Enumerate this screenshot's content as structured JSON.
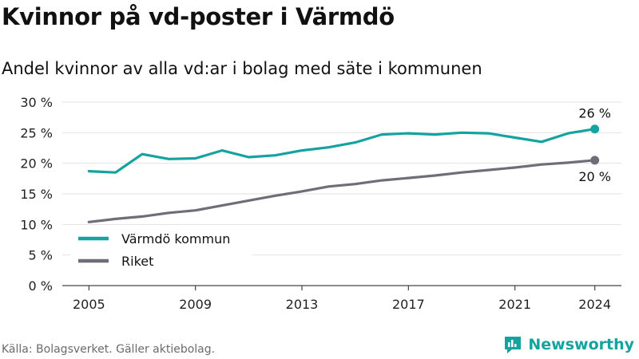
{
  "header": {
    "title": "Kvinnor på vd-poster i Värmdö",
    "subtitle": "Andel kvinnor av alla vd:ar i bolag med säte i kommunen"
  },
  "footer": {
    "source": "Källa: Bolagsverket. Gäller aktiebolag.",
    "brand": "Newsworthy",
    "brand_icon": "newsworthy-logo-icon"
  },
  "colors": {
    "varmdo": "#14a3a0",
    "riket": "#6e6e78",
    "grid": "#e2e2e2",
    "axis": "#444444"
  },
  "chart_data": {
    "type": "line",
    "title": "Kvinnor på vd-poster i Värmdö",
    "subtitle": "Andel kvinnor av alla vd:ar i bolag med säte i kommunen",
    "x": [
      2005,
      2006,
      2007,
      2008,
      2009,
      2010,
      2011,
      2012,
      2013,
      2014,
      2015,
      2016,
      2017,
      2018,
      2019,
      2020,
      2021,
      2022,
      2023,
      2024
    ],
    "series": [
      {
        "name": "Värmdö kommun",
        "color": "#14a3a0",
        "values": [
          18.7,
          18.5,
          21.5,
          20.7,
          20.8,
          22.1,
          21.0,
          21.3,
          22.1,
          22.6,
          23.4,
          24.7,
          24.9,
          24.7,
          25.0,
          24.9,
          24.2,
          23.5,
          24.9,
          25.6
        ],
        "end_label": "26 %"
      },
      {
        "name": "Riket",
        "color": "#6e6e78",
        "values": [
          10.4,
          10.9,
          11.3,
          11.9,
          12.3,
          13.1,
          13.9,
          14.7,
          15.4,
          16.2,
          16.6,
          17.2,
          17.6,
          18.0,
          18.5,
          18.9,
          19.3,
          19.8,
          20.1,
          20.5
        ],
        "end_label": "20 %"
      }
    ],
    "x_ticks": [
      "2005",
      "2009",
      "2013",
      "2017",
      "2021",
      "2024"
    ],
    "x_tick_values": [
      2005,
      2009,
      2013,
      2017,
      2021,
      2024
    ],
    "y_ticks": [
      "0 %",
      "5 %",
      "10 %",
      "15 %",
      "20 %",
      "25 %",
      "30 %"
    ],
    "y_tick_values": [
      0,
      5,
      10,
      15,
      20,
      25,
      30
    ],
    "xlim": [
      2004,
      2025
    ],
    "ylim": [
      0,
      30
    ],
    "grid": true,
    "legend": "bottom-left"
  }
}
